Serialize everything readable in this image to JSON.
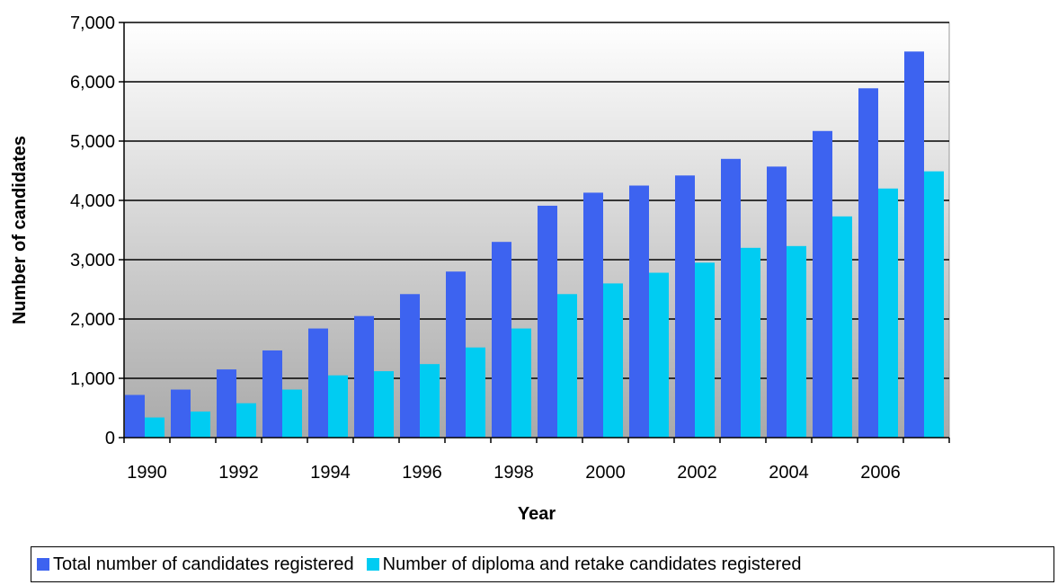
{
  "chart_data": {
    "type": "bar",
    "categories": [
      "1990",
      "1991",
      "1992",
      "1993",
      "1994",
      "1995",
      "1996",
      "1997",
      "1998",
      "1999",
      "2000",
      "2001",
      "2002",
      "2003",
      "2004",
      "2005",
      "2006",
      "2007"
    ],
    "x_tick_labels": [
      "1990",
      "1992",
      "1994",
      "1996",
      "1998",
      "2000",
      "2002",
      "2004",
      "2006"
    ],
    "series": [
      {
        "name": "Total number of candidates registered",
        "color": "#3d63f0",
        "values": [
          720,
          810,
          1150,
          1470,
          1840,
          2050,
          2420,
          2800,
          3300,
          3910,
          4130,
          4250,
          4420,
          4700,
          4570,
          5170,
          5890,
          6510
        ]
      },
      {
        "name": "Number of diploma and retake candidates registered",
        "color": "#00ccf2",
        "values": [
          340,
          440,
          580,
          810,
          1050,
          1120,
          1240,
          1520,
          1840,
          2420,
          2600,
          2780,
          2950,
          3200,
          3230,
          3730,
          4200,
          4490
        ]
      }
    ],
    "ylim": [
      0,
      7000
    ],
    "y_ticks": [
      "0",
      "1,000",
      "2,000",
      "3,000",
      "4,000",
      "5,000",
      "6,000",
      "7,000"
    ],
    "xlabel": "Year",
    "ylabel": "Number of candidates",
    "grid": true,
    "legend_position": "bottom"
  }
}
